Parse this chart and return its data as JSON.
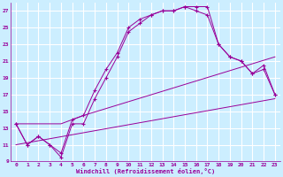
{
  "background_color": "#cceeff",
  "grid_color": "#ffffff",
  "line_color": "#990099",
  "xlabel": "Windchill (Refroidissement éolien,°C)",
  "xlabel_color": "#990099",
  "tick_color": "#990099",
  "xlim": [
    -0.5,
    23.5
  ],
  "ylim": [
    9,
    28
  ],
  "yticks": [
    9,
    11,
    13,
    15,
    17,
    19,
    21,
    23,
    25,
    27
  ],
  "xticks": [
    0,
    1,
    2,
    3,
    4,
    5,
    6,
    7,
    8,
    9,
    10,
    11,
    12,
    13,
    14,
    15,
    16,
    17,
    18,
    19,
    20,
    21,
    22,
    23
  ],
  "curve1_x": [
    0,
    1,
    2,
    3,
    4,
    5,
    6,
    7,
    8,
    9,
    10,
    11,
    12,
    13,
    14,
    15,
    16,
    17,
    18,
    19,
    20,
    21,
    22,
    23
  ],
  "curve1_y": [
    13.5,
    11,
    12,
    11,
    10,
    14,
    14.5,
    17.5,
    20,
    22,
    25,
    26,
    26.5,
    27,
    27,
    27.5,
    27.5,
    27.5,
    23,
    21.5,
    21,
    19.5,
    20,
    17
  ],
  "curve2_x": [
    0,
    1,
    2,
    3,
    4,
    5,
    6,
    7,
    8,
    9,
    10,
    11,
    12,
    13,
    14,
    15,
    16,
    17,
    18,
    19,
    20,
    21,
    22,
    23
  ],
  "curve2_y": [
    13.5,
    11,
    12,
    11,
    9.5,
    13.5,
    13.5,
    16.5,
    19,
    21.5,
    24.5,
    25.5,
    26.5,
    27,
    27,
    27.5,
    27,
    26.5,
    23,
    21.5,
    21,
    19.5,
    20.5,
    17
  ],
  "curve3_x": [
    0,
    23
  ],
  "curve3_y": [
    11,
    16.5
  ],
  "curve4_x": [
    0,
    4,
    5,
    6,
    23
  ],
  "curve4_y": [
    13.5,
    13.5,
    14,
    14.5,
    21.5
  ],
  "figsize": [
    3.2,
    2.0
  ],
  "dpi": 100
}
